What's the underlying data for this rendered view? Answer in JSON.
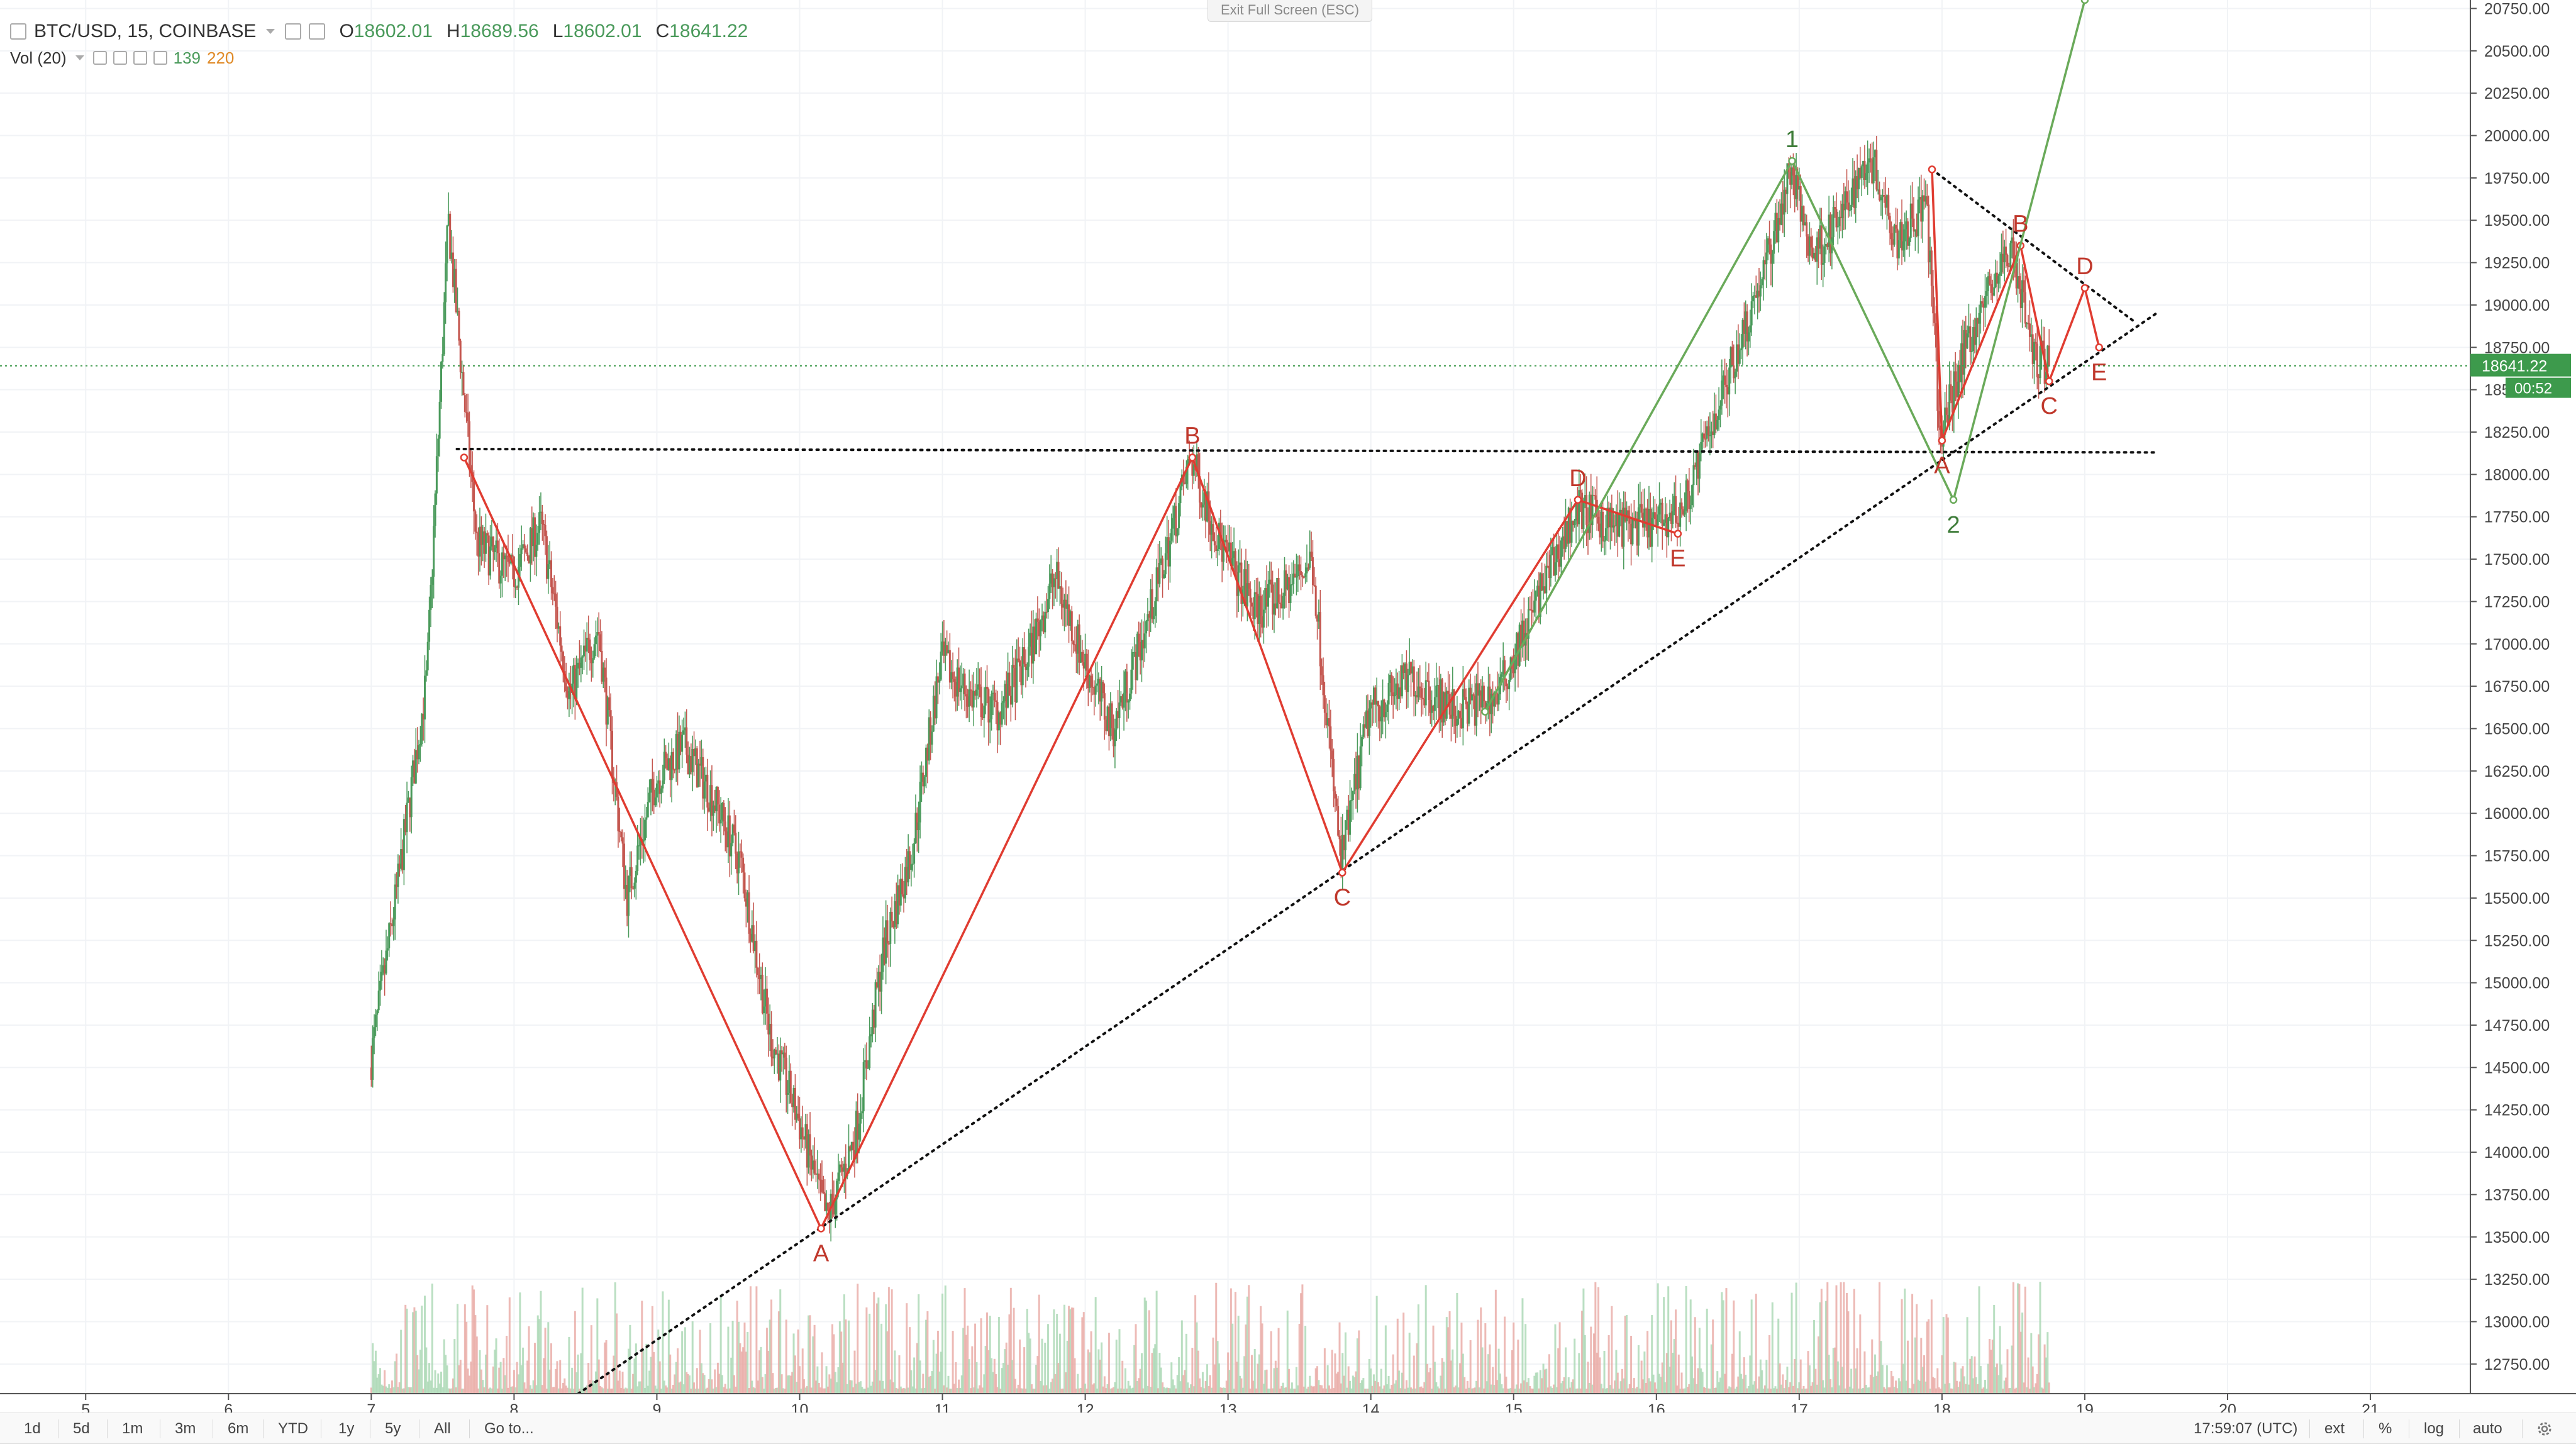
{
  "header": {
    "symbol": "BTC/USD, 15, COINBASE",
    "o_label": "O",
    "o_value": "18602.01",
    "h_label": "H",
    "h_value": "18689.56",
    "l_label": "L",
    "l_value": "18602.01",
    "c_label": "C",
    "c_value": "18641.22",
    "vol_label": "Vol (20)",
    "vol_value_1": "139",
    "vol_value_2": "220"
  },
  "exit_fullscreen": "Exit Full Screen (ESC)",
  "price_axis": {
    "ticks": [
      "20750.00",
      "20500.00",
      "20250.00",
      "20000.00",
      "19750.00",
      "19500.00",
      "19250.00",
      "19000.00",
      "18750.00",
      "18500.00",
      "18250.00",
      "18000.00",
      "17750.00",
      "17500.00",
      "17250.00",
      "17000.00",
      "16750.00",
      "16500.00",
      "16250.00",
      "16000.00",
      "15750.00",
      "15500.00",
      "15250.00",
      "15000.00",
      "14750.00",
      "14500.00",
      "14250.00",
      "14000.00",
      "13750.00",
      "13500.00",
      "13250.00",
      "13000.00",
      "12750.00"
    ],
    "current_price": "18641.22",
    "countdown": "00:52"
  },
  "time_axis": {
    "ticks": [
      "5",
      "6",
      "7",
      "8",
      "9",
      "10",
      "11",
      "12",
      "13",
      "14",
      "15",
      "16",
      "17",
      "18",
      "19",
      "20",
      "21"
    ]
  },
  "bottom_bar": {
    "ranges": [
      "1d",
      "5d",
      "1m",
      "3m",
      "6m",
      "YTD",
      "1y",
      "5y",
      "All"
    ],
    "goto": "Go to...",
    "clock": "17:59:07 (UTC)",
    "ext": "ext",
    "pct": "%",
    "log": "log",
    "auto": "auto"
  },
  "colors": {
    "up": "#4a9a5b",
    "down": "#c4564f",
    "wave_red": "#e03c31",
    "wave_green": "#6aaa5a",
    "price_line": "#3d9a4c"
  },
  "chart_data": {
    "type": "candlestick",
    "symbol": "BTC/USD",
    "interval": "15",
    "exchange": "COINBASE",
    "x_unit": "day of month",
    "xlim": [
      4.4,
      21.7
    ],
    "ylim": [
      12575,
      20800
    ],
    "volume_overlay": true,
    "current_price": 18641.22,
    "price_path": [
      [
        7.0,
        14500
      ],
      [
        7.2,
        15600
      ],
      [
        7.4,
        16800
      ],
      [
        7.55,
        19500
      ],
      [
        7.75,
        17600
      ],
      [
        8.0,
        17400
      ],
      [
        8.2,
        17700
      ],
      [
        8.4,
        16700
      ],
      [
        8.6,
        17100
      ],
      [
        8.8,
        15500
      ],
      [
        9.0,
        16200
      ],
      [
        9.2,
        16400
      ],
      [
        9.4,
        16100
      ],
      [
        9.6,
        15700
      ],
      [
        9.8,
        14700
      ],
      [
        10.0,
        14200
      ],
      [
        10.2,
        13600
      ],
      [
        10.4,
        14100
      ],
      [
        10.6,
        15200
      ],
      [
        10.8,
        15800
      ],
      [
        11.0,
        16900
      ],
      [
        11.2,
        16700
      ],
      [
        11.4,
        16600
      ],
      [
        11.6,
        16900
      ],
      [
        11.8,
        17400
      ],
      [
        12.0,
        16900
      ],
      [
        12.2,
        16500
      ],
      [
        12.4,
        17000
      ],
      [
        12.6,
        17600
      ],
      [
        12.75,
        18100
      ],
      [
        12.95,
        17600
      ],
      [
        13.2,
        17200
      ],
      [
        13.4,
        17300
      ],
      [
        13.6,
        17500
      ],
      [
        13.8,
        15700
      ],
      [
        14.0,
        16600
      ],
      [
        14.3,
        16800
      ],
      [
        14.6,
        16600
      ],
      [
        14.9,
        16700
      ],
      [
        15.2,
        17300
      ],
      [
        15.45,
        17800
      ],
      [
        15.7,
        17700
      ],
      [
        16.0,
        17700
      ],
      [
        16.2,
        17800
      ],
      [
        16.4,
        18300
      ],
      [
        16.6,
        18800
      ],
      [
        16.8,
        19300
      ],
      [
        16.95,
        19800
      ],
      [
        17.1,
        19300
      ],
      [
        17.3,
        19500
      ],
      [
        17.5,
        19900
      ],
      [
        17.7,
        19400
      ],
      [
        17.9,
        19600
      ],
      [
        18.0,
        18200
      ],
      [
        18.15,
        18700
      ],
      [
        18.35,
        19100
      ],
      [
        18.5,
        19350
      ],
      [
        18.65,
        18700
      ],
      [
        18.75,
        18650
      ]
    ],
    "wave_points": {
      "red": [
        {
          "label": "A",
          "day": 10.15,
          "price": 13550
        },
        {
          "label": "B",
          "day": 12.75,
          "price": 18100
        },
        {
          "label": "C",
          "day": 13.8,
          "price": 15650
        },
        {
          "label": "D",
          "day": 15.45,
          "price": 17850
        },
        {
          "label": "E",
          "day": 16.15,
          "price": 17650
        }
      ],
      "red_down_start": {
        "day": 7.65,
        "price": 18100
      },
      "red_small": [
        {
          "label": "A",
          "day": 18.0,
          "price": 18200
        },
        {
          "label": "B",
          "day": 18.55,
          "price": 19350
        },
        {
          "label": "C",
          "day": 18.75,
          "price": 18550
        },
        {
          "label": "D",
          "day": 19.0,
          "price": 19100
        },
        {
          "label": "E",
          "day": 19.1,
          "price": 18750
        }
      ],
      "red_small_start": {
        "day": 17.93,
        "price": 19800
      },
      "green": [
        {
          "label": "",
          "day": 14.8,
          "price": 16600
        },
        {
          "label": "1",
          "day": 16.95,
          "price": 19850
        },
        {
          "label": "2",
          "day": 18.08,
          "price": 17850
        }
      ],
      "green_end": {
        "day": 19.0,
        "price": 20800
      }
    },
    "trendlines": [
      {
        "style": "dotted",
        "from": [
          7.6,
          18150
        ],
        "to": [
          19.5,
          18130
        ]
      },
      {
        "style": "dotted",
        "from": [
          8.45,
          12575
        ],
        "to": [
          19.5,
          18950
        ]
      },
      {
        "style": "dotted",
        "from": [
          17.93,
          19800
        ],
        "to": [
          19.35,
          18900
        ]
      }
    ],
    "grid": true
  }
}
